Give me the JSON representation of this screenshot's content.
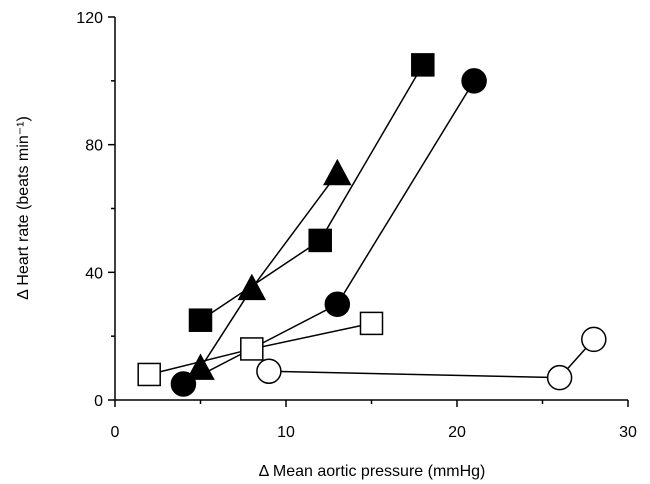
{
  "chart_data": {
    "type": "scatter",
    "title": "",
    "xlabel": "Δ Mean aortic pressure (mmHg)",
    "ylabel": "Δ Heart rate (beats min⁻¹)",
    "xlim": [
      0,
      30
    ],
    "ylim": [
      0,
      120
    ],
    "xticks": [
      0,
      10,
      20,
      30
    ],
    "yticks": [
      0,
      40,
      80,
      120
    ],
    "grid": false,
    "legend": "none",
    "series": [
      {
        "marker": "square",
        "fill": "#000000",
        "points": [
          [
            5,
            25
          ],
          [
            12,
            50
          ],
          [
            18,
            105
          ]
        ]
      },
      {
        "marker": "triangle",
        "fill": "#000000",
        "points": [
          [
            5,
            10
          ],
          [
            8,
            35
          ],
          [
            13,
            71
          ]
        ]
      },
      {
        "marker": "circle",
        "fill": "#000000",
        "points": [
          [
            4,
            5
          ],
          [
            13,
            30
          ],
          [
            21,
            100
          ]
        ]
      },
      {
        "marker": "square",
        "fill": "#ffffff",
        "points": [
          [
            2,
            8
          ],
          [
            8,
            16
          ],
          [
            15,
            24
          ]
        ]
      },
      {
        "marker": "circle",
        "fill": "#ffffff",
        "points": [
          [
            9,
            9
          ],
          [
            26,
            7
          ],
          [
            28,
            19
          ]
        ]
      }
    ]
  }
}
